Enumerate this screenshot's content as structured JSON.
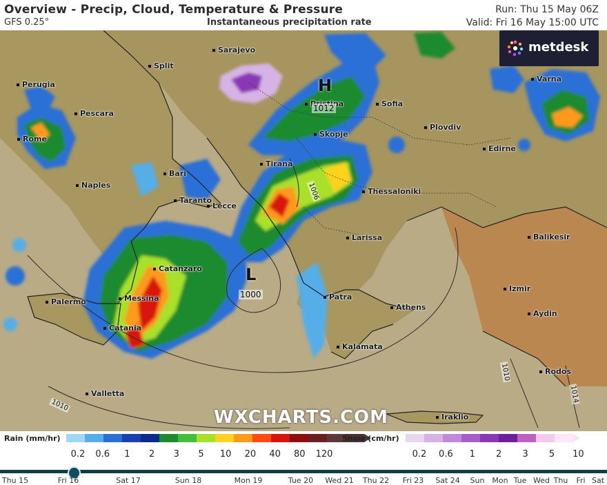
{
  "header": {
    "title": "Overview - Precip, Cloud, Temperature & Pressure",
    "model": "GFS 0.25°",
    "subtitle": "Instantaneous precipitation rate",
    "run": "Run: Thu 15 May 06Z",
    "valid": "Valid: Fri 16 May 15:00 UTC"
  },
  "logo": {
    "text": "metdesk",
    "icon": "metdesk-logo-icon"
  },
  "watermark": "WXCHARTS.COM",
  "cities": [
    "Sarajevo",
    "Split",
    "Perugia",
    "Pescara",
    "Rome",
    "Pristina",
    "Sofia",
    "Varna",
    "Skopje",
    "Plovdiv",
    "Edirne",
    "Tirana",
    "Bari",
    "Naples",
    "Thessaloniki",
    "Taranto",
    "Lecce",
    "Larissa",
    "Balikesir",
    "Catanzaro",
    "Izmir",
    "Palermo",
    "Messina",
    "Patra",
    "Athens",
    "Aydin",
    "Catania",
    "Kalamata",
    "Rodos",
    "Valletta",
    "Iraklio"
  ],
  "pressure_systems": {
    "high": {
      "letter": "H",
      "value": "1012"
    },
    "low": {
      "letter": "L",
      "value": "1000"
    }
  },
  "isobar_labels": [
    "1006",
    "1010",
    "1010",
    "1014"
  ],
  "legend": {
    "rain": {
      "title": "Rain (mm/hr)",
      "ticks": [
        "0.2",
        "0.6",
        "1",
        "2",
        "3",
        "5",
        "10",
        "20",
        "40",
        "80",
        "120"
      ],
      "colors": [
        "#9fd7f5",
        "#55aee8",
        "#2a6fd6",
        "#1a3fb0",
        "#0c2a8a",
        "#1f8a2e",
        "#3fbf3a",
        "#a8e02a",
        "#ffd21f",
        "#ff9a1a",
        "#ff4a12",
        "#d8140c",
        "#8c1010",
        "#6a2020",
        "#5a3a3a",
        "#4a3030"
      ]
    },
    "snow": {
      "title": "Snow (cm/hr)",
      "ticks": [
        "0.2",
        "0.6",
        "1",
        "2",
        "3",
        "5",
        "10"
      ],
      "colors": [
        "#e9d7ef",
        "#d7b3e5",
        "#c08ad8",
        "#a55dc9",
        "#8a38b5",
        "#6e1f9a",
        "#c05fc0",
        "#f3c9f0",
        "#ffe6fb"
      ]
    }
  },
  "timeline": {
    "labels": [
      "Thu 15",
      "Fri 16",
      "Sat 17",
      "Sun 18",
      "Mon 19",
      "Tue 20",
      "Wed 21",
      "Thu 22",
      "Fri 23",
      "Sat 24",
      "Sun",
      "Mon",
      "Tue",
      "Wed",
      "Thu",
      "Fri",
      "Sat"
    ],
    "current": "Fri 16"
  }
}
